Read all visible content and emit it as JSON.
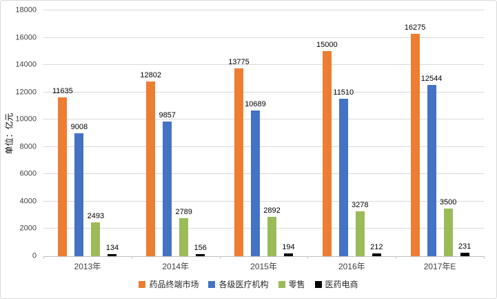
{
  "chart_data": {
    "type": "bar",
    "title": "",
    "ylabel": "单位：亿元",
    "xlabel": "",
    "ylim": [
      0,
      18000
    ],
    "ytick_step": 2000,
    "grid": true,
    "legend_position": "bottom",
    "categories": [
      "2013年",
      "2014年",
      "2015年",
      "2016年",
      "2017年E"
    ],
    "series": [
      {
        "name": "药品终端市场",
        "color": "#ED7D31",
        "values": [
          11635,
          12802,
          13775,
          15000,
          16275
        ]
      },
      {
        "name": "各级医疗机构",
        "color": "#4472C4",
        "values": [
          9008,
          9857,
          10689,
          11510,
          12544
        ]
      },
      {
        "name": "零售",
        "color": "#9BBB59",
        "values": [
          2493,
          2789,
          2892,
          3278,
          3500
        ]
      },
      {
        "name": "医药电商",
        "color": "#000000",
        "values": [
          134,
          156,
          194,
          212,
          231
        ]
      }
    ],
    "colors": {
      "gridline": "#d9d9d9",
      "axis": "#bfbfbf",
      "tick_text": "#404040"
    }
  }
}
